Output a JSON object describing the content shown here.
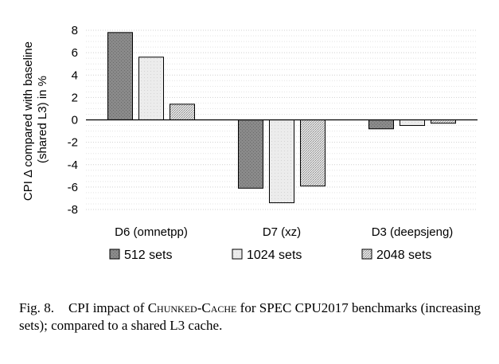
{
  "chart_data": {
    "type": "bar",
    "categories": [
      "D6 (omnetpp)",
      "D7 (xz)",
      "D3 (deepsjeng)"
    ],
    "series": [
      {
        "name": "512 sets",
        "values": [
          7.8,
          -6.1,
          -0.8
        ]
      },
      {
        "name": "1024 sets",
        "values": [
          5.6,
          -7.4,
          -0.5
        ]
      },
      {
        "name": "2048 sets",
        "values": [
          1.4,
          -5.9,
          -0.3
        ]
      }
    ],
    "ylabel_lines": [
      "CPI Δ compared with baseline",
      "(shared L3) in %"
    ],
    "ylim": [
      -8,
      8
    ],
    "yticks": [
      8,
      6,
      4,
      2,
      0,
      -2,
      -4,
      -6,
      -8
    ],
    "grid": true,
    "legend_position": "bottom",
    "colors": {
      "512 sets": "#8c8c8c",
      "1024 sets": "#e6e6e6",
      "2048 sets": "#cccccc"
    }
  },
  "caption": {
    "label": "Fig. 8.",
    "text_before": "CPI impact of ",
    "smallcaps": "Chunked-Cache",
    "text_after": " for SPEC CPU2017 benchmarks (increasing sets); compared to a shared L3 cache."
  }
}
